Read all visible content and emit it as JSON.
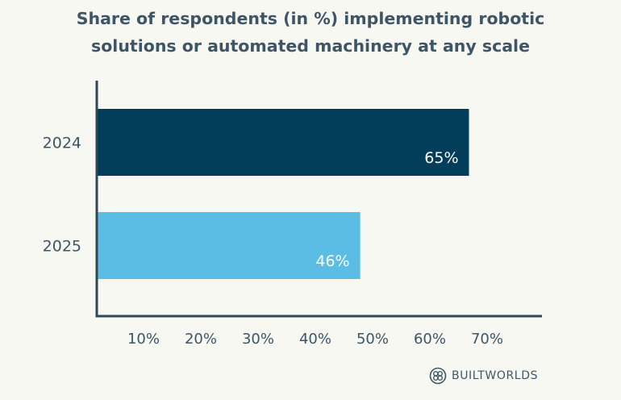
{
  "title_lines": [
    "Share of respondents (in %) implementing robotic",
    "solutions or automated machinery at any scale"
  ],
  "chart_data": {
    "type": "bar",
    "orientation": "horizontal",
    "title": "Share of respondents (in %) implementing robotic solutions or automated machinery at any scale",
    "categories": [
      "2024",
      "2025"
    ],
    "values": [
      65,
      46
    ],
    "value_labels": [
      "65%",
      "46%"
    ],
    "x_ticks": [
      10,
      20,
      30,
      40,
      50,
      60,
      70
    ],
    "x_tick_labels": [
      "10%",
      "20%",
      "30%",
      "40%",
      "50%",
      "60%",
      "70%"
    ],
    "xlim": [
      0,
      72
    ],
    "grid": false,
    "legend": "none",
    "colors": {
      "bars": [
        "#023e59",
        "#5bbde4"
      ],
      "axis": "#2e4657",
      "text": "#3d5566",
      "value_label": "#ffffff"
    }
  },
  "brand": {
    "name": "BUILTWORLDS",
    "logo_icon": "builtworlds-logo-icon"
  }
}
